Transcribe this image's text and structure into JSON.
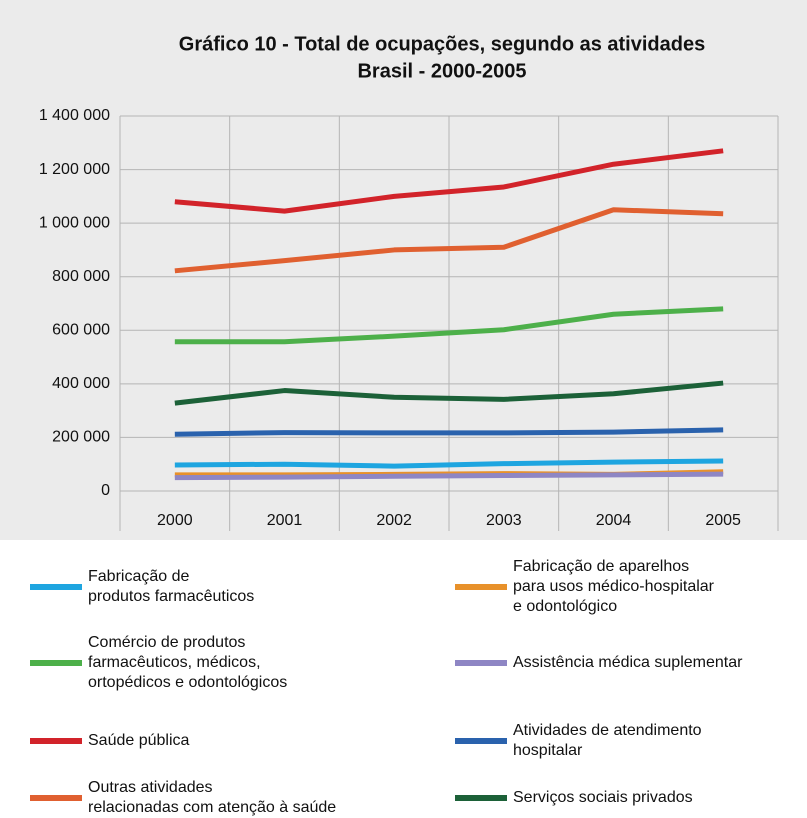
{
  "chart_data": {
    "type": "line",
    "title": "Gráfico 10 - Total de ocupações, segundo as atividades",
    "subtitle": "Brasil - 2000-2005",
    "categories": [
      "2000",
      "2001",
      "2002",
      "2003",
      "2004",
      "2005"
    ],
    "ylim": [
      0,
      1400000
    ],
    "yticks": [
      0,
      {
        "value": 200000,
        "label": "200 000"
      },
      {
        "value": 400000,
        "label": "400 000"
      },
      {
        "value": 600000,
        "label": "600 000"
      },
      {
        "value": 800000,
        "label": "800 000"
      },
      {
        "value": 1000000,
        "label": "1 000 000"
      },
      {
        "value": 1200000,
        "label": "1 200 000"
      },
      {
        "value": 1400000,
        "label": "1 400 000"
      }
    ],
    "grid": true,
    "legend": "bottom",
    "series": [
      {
        "name": "Fabricação de\nprodutos farmacêuticos",
        "color": "#1ea5e0",
        "values": [
          97000,
          100000,
          93000,
          102000,
          108000,
          112000
        ]
      },
      {
        "name": "Fabricação de aparelhos\npara usos médico-hospitalar\ne odontológico",
        "color": "#e8912a",
        "values": [
          60000,
          60000,
          62000,
          65000,
          62000,
          72000
        ]
      },
      {
        "name": "Comércio de produtos\nfarmacêuticos, médicos,\nortopédicos e odontológicos",
        "color": "#4db04a",
        "values": [
          557000,
          557000,
          578000,
          602000,
          660000,
          680000
        ]
      },
      {
        "name": "Assistência médica suplementar",
        "color": "#8e86c4",
        "values": [
          50000,
          52000,
          55000,
          58000,
          60000,
          63000
        ]
      },
      {
        "name": "Saúde pública",
        "color": "#d2232a",
        "values": [
          1080000,
          1045000,
          1100000,
          1135000,
          1220000,
          1270000
        ]
      },
      {
        "name": "Atividades de atendimento\nhospitalar",
        "color": "#2a62ad",
        "values": [
          212000,
          218000,
          217000,
          217000,
          220000,
          228000
        ]
      },
      {
        "name": "Outras atividades\nrelacionadas com atenção à saúde",
        "color": "#e06030",
        "values": [
          822000,
          860000,
          900000,
          910000,
          1050000,
          1035000
        ]
      },
      {
        "name": "Serviços sociais privados",
        "color": "#1c6138",
        "values": [
          328000,
          375000,
          350000,
          342000,
          363000,
          403000
        ]
      }
    ]
  }
}
